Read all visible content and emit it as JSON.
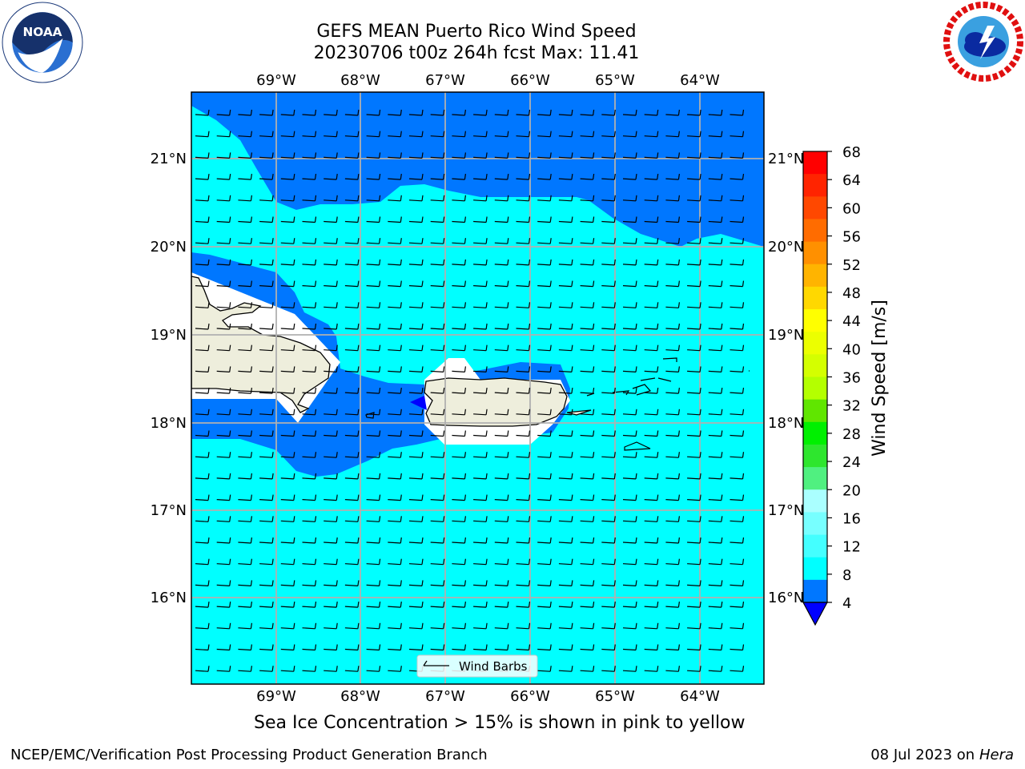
{
  "header": {
    "title_line1": "GEFS MEAN Puerto Rico Wind Speed",
    "title_line2": "20230706 t00z 264h fcst   Max: 11.41"
  },
  "logos": {
    "left": {
      "name": "NOAA",
      "icon": "noaa-logo",
      "ring_text": "NATIONAL OCEANIC AND ATMOSPHERIC ADMINISTRATION · U.S. DEPARTMENT OF COMMERCE"
    },
    "right": {
      "name": "National Weather Service",
      "icon": "nws-logo",
      "ring_text": "NATIONAL WEATHER SERVICE"
    }
  },
  "map": {
    "lon_labels": [
      "69°W",
      "68°W",
      "67°W",
      "66°W",
      "65°W",
      "64°W"
    ],
    "lat_labels": [
      "21°N",
      "20°N",
      "19°N",
      "18°N",
      "17°N",
      "16°N"
    ],
    "legend_label": "Wind Barbs",
    "land_color": "#eeeedc"
  },
  "colorbar": {
    "label": "Wind Speed [m/s]",
    "ticks": [
      "68",
      "64",
      "60",
      "56",
      "52",
      "48",
      "44",
      "40",
      "36",
      "32",
      "28",
      "24",
      "20",
      "16",
      "12",
      "8",
      "4"
    ],
    "colors": [
      "#ff0000",
      "#ff2400",
      "#ff4800",
      "#ff6c00",
      "#ff9000",
      "#ffb400",
      "#ffd800",
      "#ffff00",
      "#ecff00",
      "#d4ff00",
      "#b4ff00",
      "#60e600",
      "#00f000",
      "#2ee62e",
      "#50f080",
      "#aaffff",
      "#77ffff",
      "#44ffff",
      "#00ffff",
      "#0077ff"
    ],
    "under_color": "#0000ff"
  },
  "notes": {
    "sea_ice": "Sea Ice Concentration > 15% is shown in pink to yellow"
  },
  "footer": {
    "left": "NCEP/EMC/Verification Post Processing Product Generation Branch",
    "date": "08 Jul 2023 on ",
    "machine": "Hera"
  }
}
